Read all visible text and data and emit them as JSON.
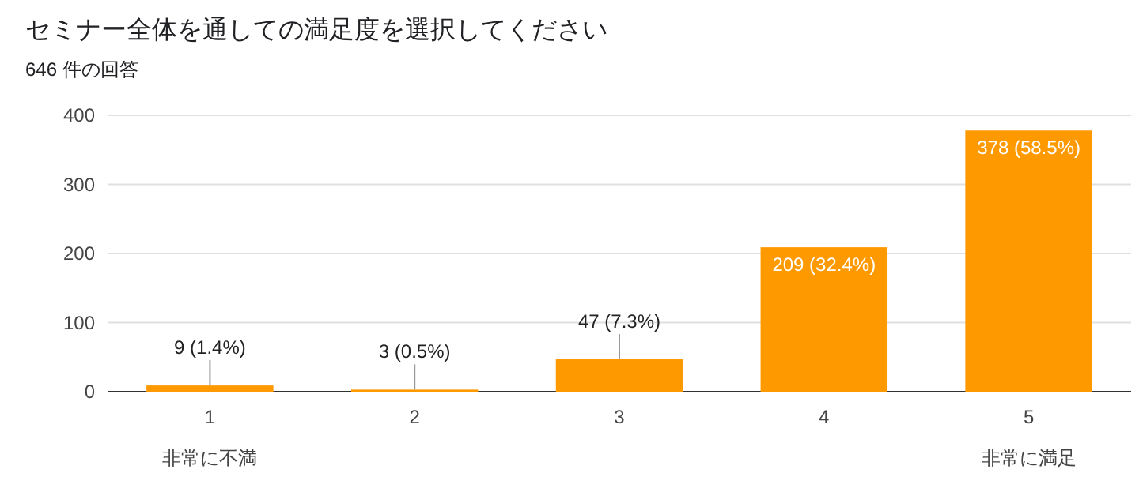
{
  "chart_data": {
    "type": "bar",
    "title": "セミナー全体を通しての満足度を選択してください",
    "subtitle": "646 件の回答",
    "categories": [
      "1",
      "2",
      "3",
      "4",
      "5"
    ],
    "values": [
      9,
      3,
      47,
      209,
      378
    ],
    "value_labels": [
      "9 (1.4%)",
      "3 (0.5%)",
      "47 (7.3%)",
      "209 (32.4%)",
      "378 (58.5%)"
    ],
    "color": "#ff9900",
    "ylim": [
      0,
      400
    ],
    "yticks": [
      0,
      100,
      200,
      300,
      400
    ],
    "grid": "y",
    "annotations": [
      "非常に不満",
      "非常に満足"
    ]
  }
}
